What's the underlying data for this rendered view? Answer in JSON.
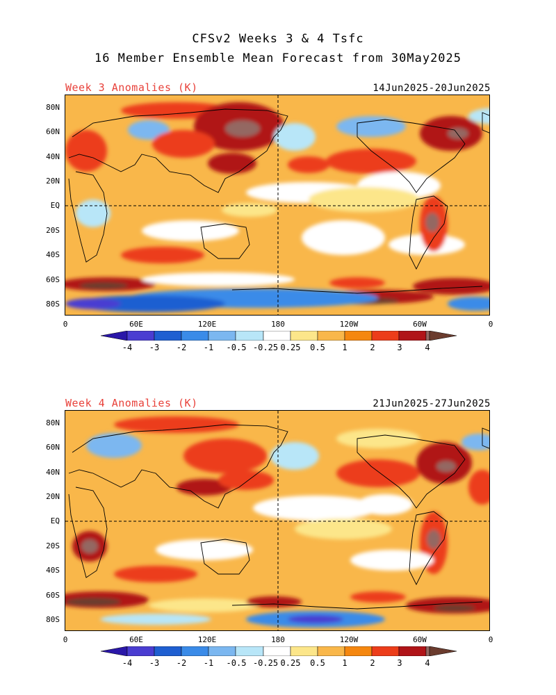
{
  "header": {
    "line1": "CFSv2 Weeks 3 & 4 Tsfc",
    "line2": "16 Member Ensemble Mean Forecast from 30May2025"
  },
  "panels": [
    {
      "title": "Week 3 Anomalies (K)",
      "dates": "14Jun2025-20Jun2025"
    },
    {
      "title": "Week 4 Anomalies (K)",
      "dates": "21Jun2025-27Jun2025"
    }
  ],
  "lat_labels": [
    "80N",
    "60N",
    "40N",
    "20N",
    "EQ",
    "20S",
    "40S",
    "60S",
    "80S"
  ],
  "lon_labels": [
    "0",
    "60E",
    "120E",
    "180",
    "120W",
    "60W",
    "0"
  ],
  "colorbar": {
    "labels": [
      "-4",
      "-3",
      "-2",
      "-1",
      "-0.5",
      "-0.25",
      "0.25",
      "0.5",
      "1",
      "2",
      "3",
      "4"
    ],
    "colors": [
      "#2a17a8",
      "#4a3dd1",
      "#1f5fd1",
      "#3a8be8",
      "#7bb7f0",
      "#b8e6f8",
      "#ffffff",
      "#fce68a",
      "#f9b74a",
      "#f5870f",
      "#ec3d1a",
      "#b01418",
      "#946862",
      "#6b3c2e"
    ]
  }
}
